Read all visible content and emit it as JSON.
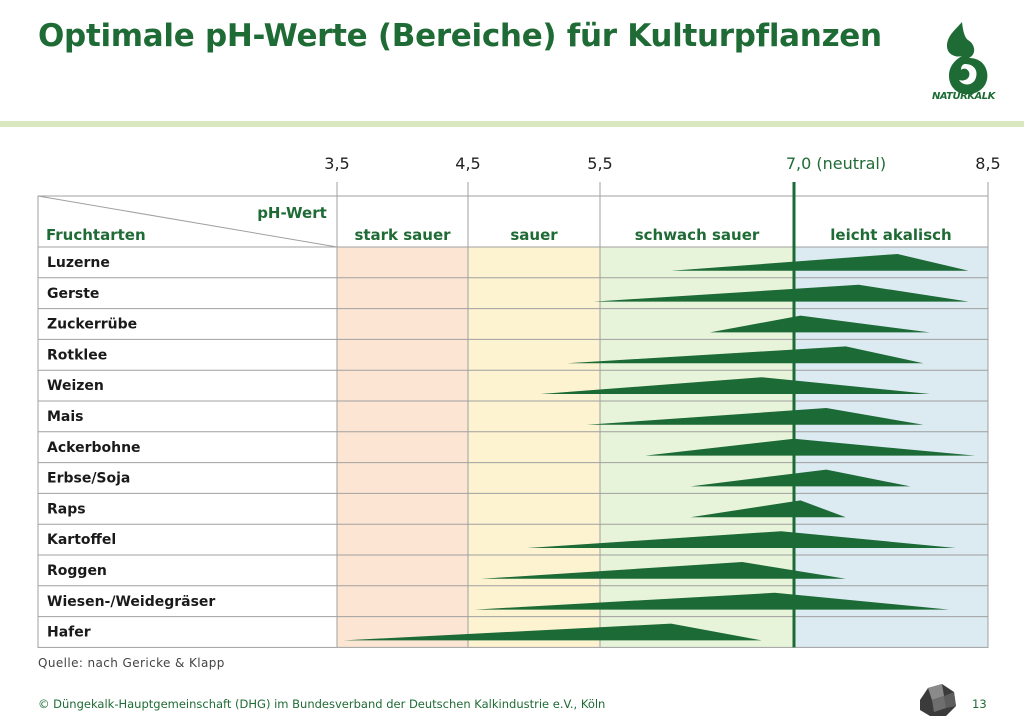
{
  "title": "Optimale pH-Werte (Bereiche) für Kulturpflanzen",
  "logo": {
    "name": "NATURKALK"
  },
  "source": "Quelle: nach Gericke & Klapp",
  "footer": "© Düngekalk-Hauptgemeinschaft (DHG) im Bundesverband der Deutschen Kalkindustrie e.V., Köln",
  "page_number": "13",
  "colors": {
    "accent": "#1f6b35",
    "triangle": "#1c6a36",
    "zone_stark_sauer": "#fce6d3",
    "zone_sauer": "#fdf3d0",
    "zone_schwach_sauer": "#e8f4d9",
    "zone_leicht_alkalisch": "#dceaf2",
    "grid": "#a0a0a0"
  },
  "chart_data": {
    "type": "range-triangles",
    "xaxis_ticks": [
      "3,5",
      "4,5",
      "5,5",
      "7,0 (neutral)",
      "8,5"
    ],
    "tick_values": [
      3.5,
      4.5,
      5.5,
      7.0,
      8.5
    ],
    "neutral_value": 7.0,
    "header_axis_label": "pH-Wert",
    "header_row_label": "Fruchtarten",
    "zones": [
      {
        "label": "stark sauer",
        "from": 3.5,
        "to": 4.5
      },
      {
        "label": "sauer",
        "from": 4.5,
        "to": 5.5
      },
      {
        "label": "schwach sauer",
        "from": 5.5,
        "to": 7.0
      },
      {
        "label": "leicht akalisch",
        "from": 7.0,
        "to": 8.5
      }
    ],
    "series": [
      {
        "name": "Luzerne",
        "min": 6.05,
        "peak": 7.8,
        "max": 8.35
      },
      {
        "name": "Gerste",
        "min": 5.45,
        "peak": 7.5,
        "max": 8.35
      },
      {
        "name": "Zuckerrübe",
        "min": 6.35,
        "peak": 7.05,
        "max": 8.05
      },
      {
        "name": "Rotklee",
        "min": 5.25,
        "peak": 7.4,
        "max": 8.0
      },
      {
        "name": "Weizen",
        "min": 5.05,
        "peak": 6.75,
        "max": 8.05
      },
      {
        "name": "Mais",
        "min": 5.4,
        "peak": 7.25,
        "max": 8.0
      },
      {
        "name": "Ackerbohne",
        "min": 5.85,
        "peak": 7.0,
        "max": 8.4
      },
      {
        "name": "Erbse/Soja",
        "min": 6.2,
        "peak": 7.25,
        "max": 7.9
      },
      {
        "name": "Raps",
        "min": 6.2,
        "peak": 7.05,
        "max": 7.4
      },
      {
        "name": "Kartoffel",
        "min": 4.95,
        "peak": 6.9,
        "max": 8.25
      },
      {
        "name": "Roggen",
        "min": 4.6,
        "peak": 6.6,
        "max": 7.4
      },
      {
        "name": "Wiesen-/Weidegräser",
        "min": 4.55,
        "peak": 6.85,
        "max": 8.2
      },
      {
        "name": "Hafer",
        "min": 3.55,
        "peak": 6.05,
        "max": 6.75
      }
    ]
  }
}
